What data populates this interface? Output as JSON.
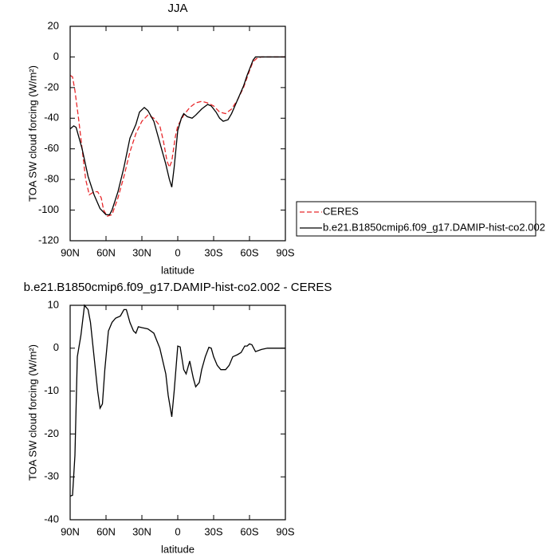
{
  "chart_data": [
    {
      "type": "line",
      "title": "JJA",
      "xlabel": "latitude",
      "ylabel": "TOA SW cloud forcing (W/m²)",
      "xlim": [
        90,
        -90
      ],
      "xticks": [
        {
          "value": 90,
          "label": "90N"
        },
        {
          "value": 60,
          "label": "60N"
        },
        {
          "value": 30,
          "label": "30N"
        },
        0,
        {
          "value": -30,
          "label": "30S"
        },
        {
          "value": -60,
          "label": "60S"
        },
        {
          "value": -90,
          "label": "90S"
        }
      ],
      "ylim": [
        -120,
        20
      ],
      "yticks": [
        -120,
        -100,
        -80,
        -60,
        -40,
        -20,
        0,
        20
      ],
      "series": [
        {
          "name": "CERES",
          "color": "#e8282b",
          "dashed": true,
          "x": [
            90,
            88,
            86,
            83,
            80,
            77,
            74,
            70,
            67,
            64,
            62,
            59,
            55,
            50,
            45,
            40,
            35,
            30,
            25,
            20,
            15,
            12,
            9,
            7,
            5,
            2,
            0,
            -5,
            -10,
            -15,
            -20,
            -25,
            -30,
            -35,
            -40,
            -45,
            -50,
            -55,
            -60,
            -63,
            -66,
            -70,
            -80,
            -90
          ],
          "values": [
            -12,
            -13,
            -22,
            -40,
            -60,
            -80,
            -90,
            -88,
            -88,
            -92,
            -100,
            -104,
            -103,
            -92,
            -78,
            -62,
            -50,
            -42,
            -38,
            -40,
            -45,
            -55,
            -68,
            -72,
            -68,
            -52,
            -45,
            -38,
            -33,
            -30,
            -29,
            -30,
            -32,
            -36,
            -37,
            -34,
            -28,
            -20,
            -9,
            -3,
            -1,
            0,
            0,
            0
          ]
        },
        {
          "name": "b.e21.B1850cmip6.f09_g17.DAMIP-hist-co2.002",
          "color": "#000000",
          "dashed": false,
          "x": [
            90,
            87,
            85,
            80,
            75,
            70,
            65,
            60,
            57,
            55,
            50,
            45,
            40,
            35,
            32,
            28,
            25,
            20,
            15,
            10,
            7,
            5,
            3,
            0,
            -3,
            -5,
            -8,
            -12,
            -15,
            -20,
            -25,
            -28,
            -32,
            -35,
            -38,
            -42,
            -45,
            -50,
            -55,
            -58,
            -60,
            -63,
            -65,
            -70,
            -75,
            -80,
            -85,
            -90
          ],
          "values": [
            -47,
            -45,
            -46,
            -60,
            -78,
            -90,
            -99,
            -103,
            -103,
            -100,
            -88,
            -72,
            -53,
            -44,
            -36,
            -33,
            -35,
            -42,
            -56,
            -70,
            -80,
            -85,
            -72,
            -48,
            -40,
            -37,
            -39,
            -40,
            -38,
            -34,
            -31,
            -32,
            -36,
            -40,
            -42,
            -41,
            -37,
            -28,
            -19,
            -12,
            -8,
            -2,
            0,
            0,
            0,
            0,
            0,
            0
          ]
        }
      ]
    },
    {
      "type": "line",
      "title": "b.e21.B1850cmip6.f09_g17.DAMIP-hist-co2.002 - CERES",
      "xlabel": "latitude",
      "ylabel": "TOA SW cloud forcing (W/m²)",
      "xlim": [
        90,
        -90
      ],
      "xticks": [
        {
          "value": 90,
          "label": "90N"
        },
        {
          "value": 60,
          "label": "60N"
        },
        {
          "value": 30,
          "label": "30N"
        },
        0,
        {
          "value": -30,
          "label": "30S"
        },
        {
          "value": -60,
          "label": "60S"
        },
        {
          "value": -90,
          "label": "90S"
        }
      ],
      "ylim": [
        -40,
        10
      ],
      "yticks": [
        -40,
        -30,
        -20,
        -10,
        0,
        10
      ],
      "series": [
        {
          "color": "#000000",
          "dashed": false,
          "x": [
            90,
            88,
            86,
            84,
            81,
            78,
            75,
            73,
            70,
            67,
            65,
            63,
            61,
            58,
            55,
            52,
            48,
            45,
            43,
            40,
            37,
            35,
            33,
            30,
            25,
            20,
            15,
            10,
            8,
            5,
            3,
            0,
            -2,
            -5,
            -7,
            -10,
            -13,
            -15,
            -18,
            -20,
            -23,
            -26,
            -28,
            -30,
            -33,
            -36,
            -40,
            -43,
            -46,
            -50,
            -53,
            -56,
            -58,
            -60,
            -62,
            -65,
            -70,
            -75,
            -80,
            -90
          ],
          "values": [
            -34.5,
            -34.3,
            -25,
            -2,
            3,
            10,
            9,
            6,
            -2,
            -10,
            -14,
            -13,
            -5,
            4,
            6,
            7,
            7.5,
            9,
            9,
            6,
            4,
            3.5,
            5,
            4.8,
            4.5,
            3.5,
            0,
            -6,
            -11,
            -16,
            -10,
            0.5,
            0.3,
            -5,
            -6,
            -3,
            -7,
            -9,
            -8,
            -5,
            -2,
            0.2,
            0,
            -2,
            -4,
            -5,
            -5,
            -4,
            -2,
            -1.5,
            -1,
            0.5,
            0.5,
            1,
            0.8,
            -0.8,
            -0.3,
            0,
            0,
            0
          ]
        }
      ]
    }
  ]
}
